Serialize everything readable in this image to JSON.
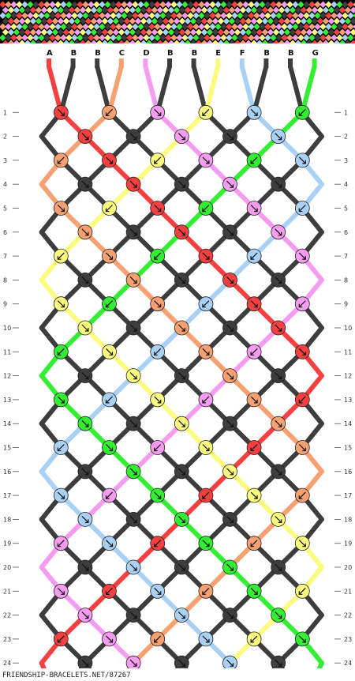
{
  "colors": {
    "A": "#f44040",
    "B": "#3d3d3d",
    "C": "#f7a072",
    "D": "#f59cf0",
    "E": "#fbfb80",
    "F": "#a9d0f5",
    "G": "#33ee33"
  },
  "strings": {
    "top": [
      "A",
      "B",
      "B",
      "C",
      "D",
      "B",
      "B",
      "E",
      "F",
      "B",
      "B",
      "G"
    ],
    "bottom": [
      "A",
      "B",
      "B",
      "C",
      "D",
      "B",
      "B",
      "E",
      "F",
      "B",
      "B",
      "G"
    ]
  },
  "rows": [
    "1",
    "2",
    "3",
    "4",
    "5",
    "6",
    "7",
    "8",
    "9",
    "10",
    "11",
    "12",
    "13",
    "14",
    "15",
    "16",
    "17",
    "18",
    "19",
    "20",
    "21",
    "22",
    "23",
    "24"
  ],
  "site_url": "FRIENDSHIP-BRACELETS.NET/87267"
}
